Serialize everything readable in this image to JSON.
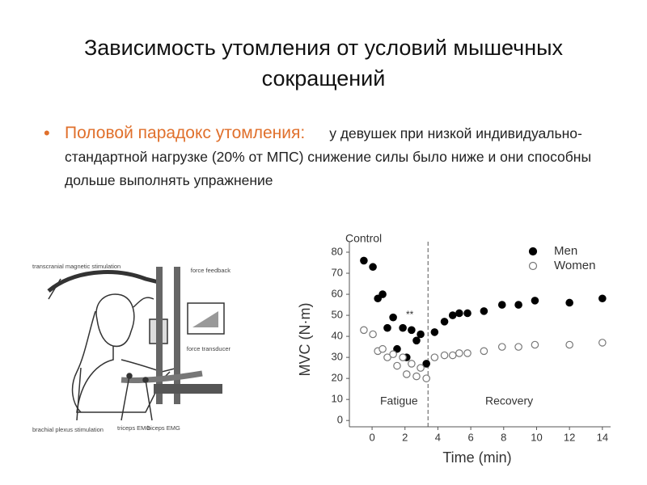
{
  "slide": {
    "title": "Зависимость утомления от условий мышечных сокращений",
    "bullet_term": "Половой парадокс утомления:",
    "bullet_text": "у девушек при низкой индивидуально-стандартной нагрузке (20% от МПС) снижение силы было ниже и они способны дольше выполнять упражнение"
  },
  "illustration": {
    "labels": [
      "transcranial magnetic stimulation",
      "force feedback",
      "force transducer",
      "brachial plexus stimulation",
      "triceps EMG",
      "biceps EMG"
    ]
  },
  "chart_data": {
    "type": "scatter",
    "corner_label": "Control",
    "xlabel": "Time (min)",
    "ylabel": "MVC (N·m)",
    "annotations": [
      "Fatigue",
      "Recovery",
      "**"
    ],
    "divider_x": 3.4,
    "x": [
      -0.5,
      0.05,
      0.35,
      0.64,
      0.93,
      1.28,
      1.52,
      1.87,
      2.1,
      2.4,
      2.7,
      2.95,
      3.3,
      3.8,
      4.4,
      4.9,
      5.3,
      5.8,
      6.8,
      7.9,
      8.9,
      9.9,
      12,
      14
    ],
    "series": [
      {
        "name": "Men",
        "color": "#000000",
        "values": [
          76,
          73,
          58,
          60,
          44,
          49,
          34,
          44,
          30,
          43,
          38,
          41,
          27,
          42,
          47,
          50,
          51,
          51,
          52,
          55,
          55,
          57,
          56,
          58
        ]
      },
      {
        "name": "Women",
        "color": "#ffffff",
        "values": [
          43,
          41,
          33,
          34,
          30,
          31.5,
          26,
          30,
          22,
          27,
          21,
          25,
          20,
          30,
          31,
          31,
          32,
          32,
          33,
          35,
          35,
          36,
          36,
          37
        ]
      }
    ],
    "xlim": [
      -1.38,
      14.5
    ],
    "ylim": [
      -3,
      85
    ],
    "xticks": [
      0,
      2,
      4,
      6,
      8,
      10,
      12,
      14
    ],
    "yticks": [
      0,
      10,
      20,
      30,
      40,
      50,
      60,
      70,
      80
    ],
    "legend": "upper right"
  }
}
